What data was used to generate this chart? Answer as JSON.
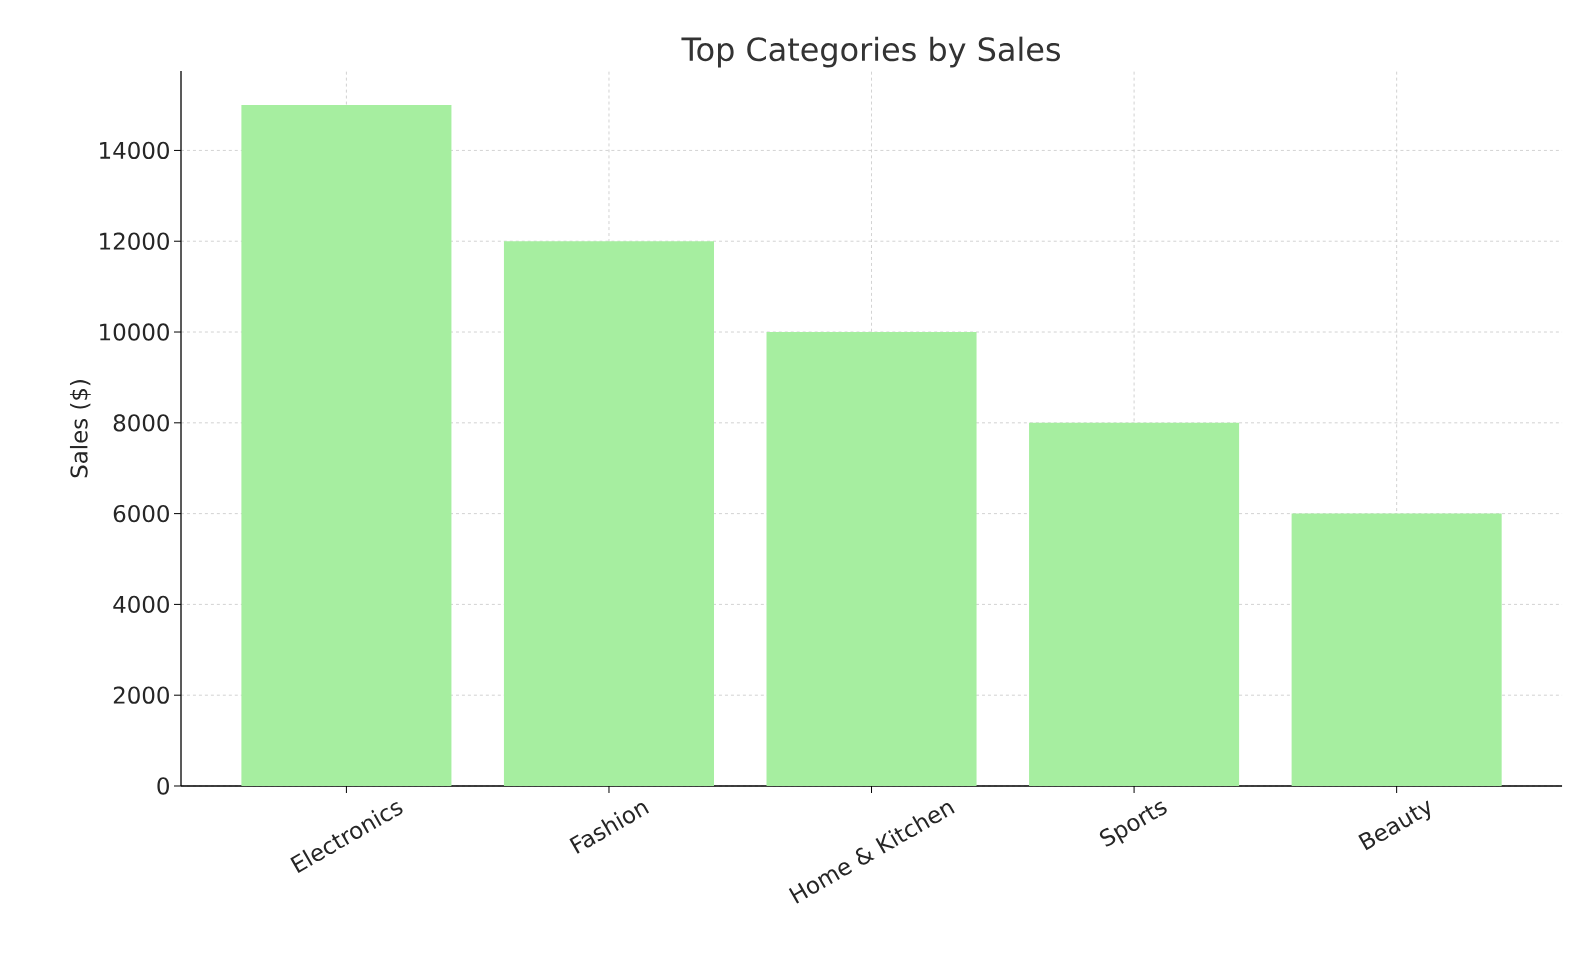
{
  "chart_data": {
    "type": "bar",
    "title": "Top Categories by Sales",
    "ylabel": "Sales ($)",
    "categories": [
      "Electronics",
      "Fashion",
      "Home & Kitchen",
      "Sports",
      "Beauty"
    ],
    "values": [
      15000,
      12000,
      10000,
      8000,
      6000
    ],
    "color": "#a6eea0",
    "ylim": [
      0,
      15750
    ],
    "yticks": [
      0,
      2000,
      4000,
      6000,
      8000,
      10000,
      12000,
      14000
    ],
    "grid": true
  }
}
